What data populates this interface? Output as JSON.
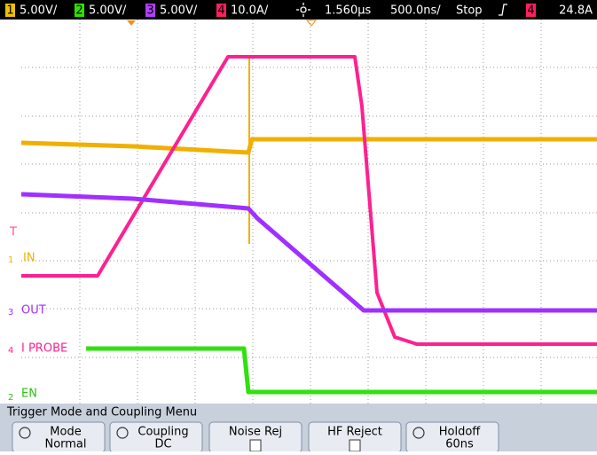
{
  "status_bar": {
    "ch1": {
      "number": "1",
      "scale": "5.00V/"
    },
    "ch2": {
      "number": "2",
      "scale": "5.00V/"
    },
    "ch3": {
      "number": "3",
      "scale": "5.00V/"
    },
    "ch4": {
      "number": "4",
      "scale": "10.0A/"
    },
    "delay": "1.560µs",
    "timebase": "500.0ns/",
    "state": "Stop",
    "trigger_source": "4",
    "trigger_level": "24.8A"
  },
  "traces": {
    "trigger_marker": "T",
    "in": {
      "number": "1",
      "label": "IN"
    },
    "out": {
      "number": "3",
      "label": "OUT"
    },
    "probe": {
      "number": "4",
      "label": "I PROBE"
    },
    "en": {
      "number": "2",
      "label": "EN"
    }
  },
  "menu": {
    "title": "Trigger Mode and Coupling Menu",
    "softkeys": [
      {
        "label": "Mode",
        "value": "Normal"
      },
      {
        "label": "Coupling",
        "value": "DC"
      },
      {
        "label": "Noise Rej"
      },
      {
        "label": "HF Reject"
      },
      {
        "label": "Holdoff",
        "value": "60ns"
      }
    ]
  }
}
